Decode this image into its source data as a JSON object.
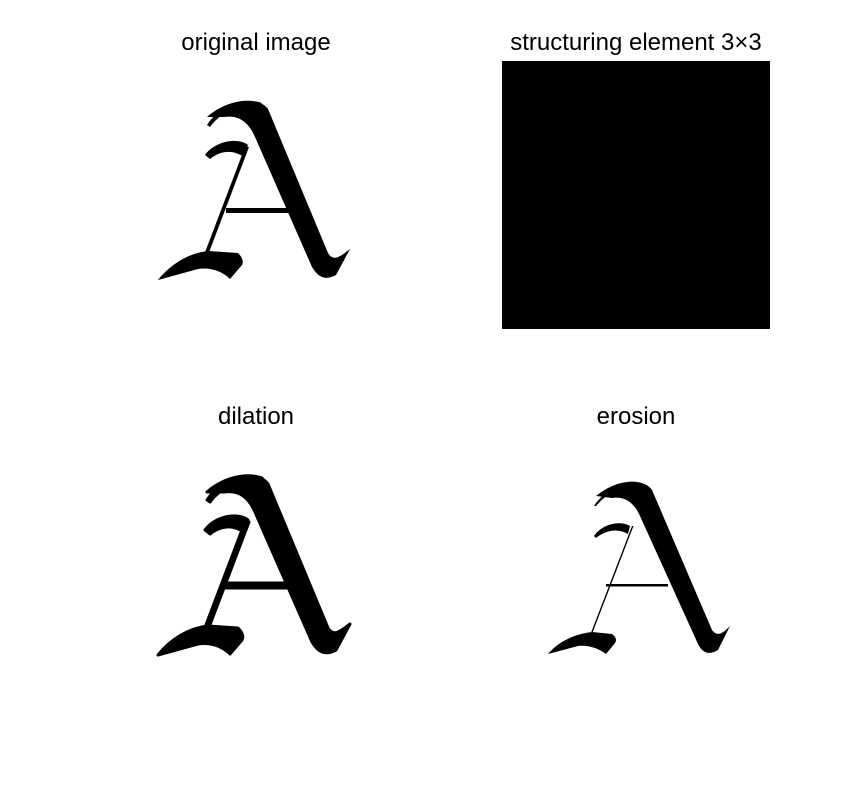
{
  "figure": {
    "panels": [
      {
        "id": "original",
        "title": "original image",
        "variant": "original"
      },
      {
        "id": "structuring",
        "title": "structuring element 3×3",
        "variant": "structuring"
      },
      {
        "id": "dilation",
        "title": "dilation",
        "variant": "dilated"
      },
      {
        "id": "erosion",
        "title": "erosion",
        "variant": "eroded"
      }
    ],
    "colors": {
      "foreground": "#000000",
      "background": "#ffffff"
    }
  }
}
